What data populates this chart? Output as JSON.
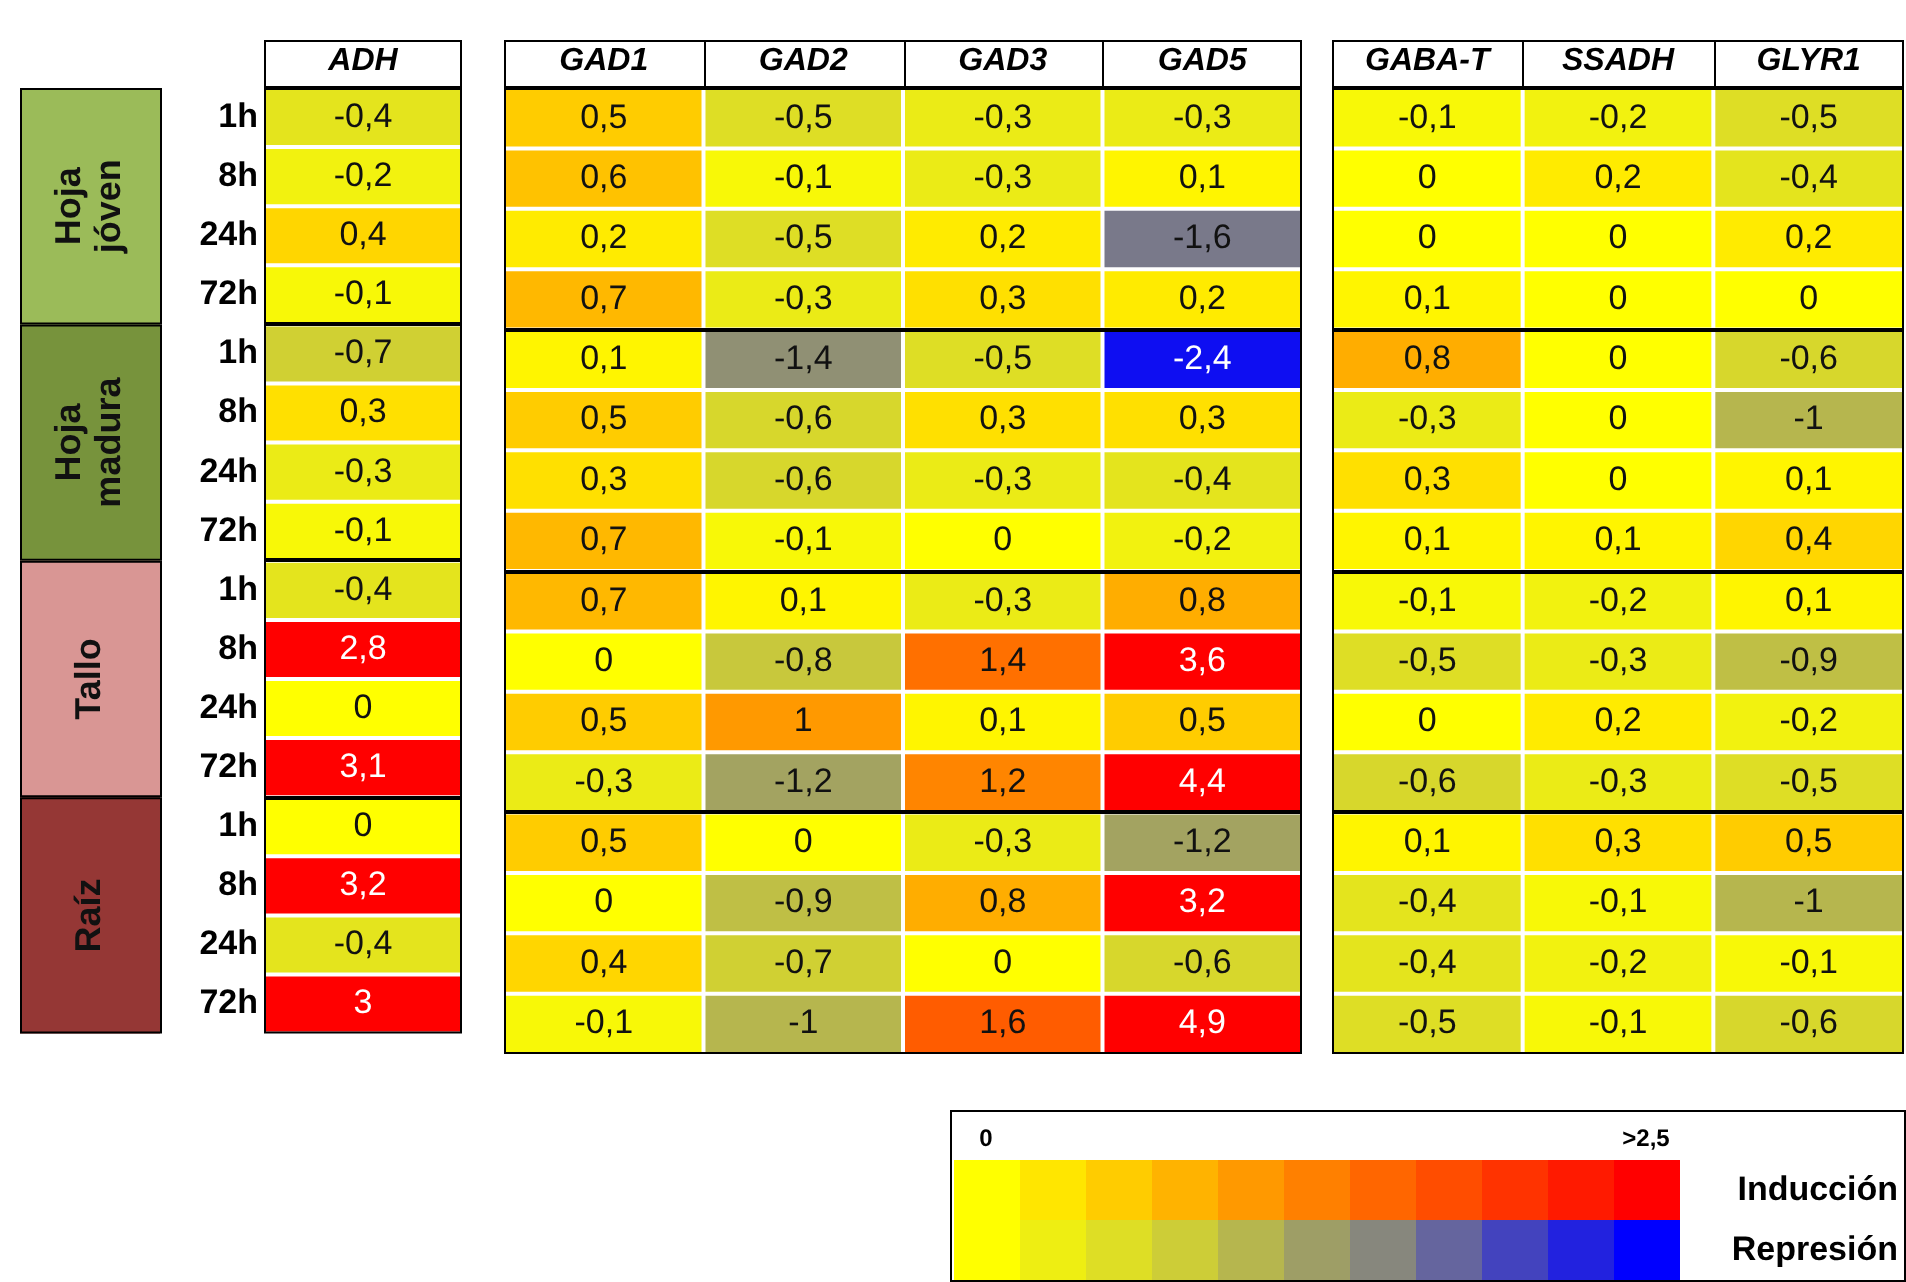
{
  "chart_data": [
    {
      "type": "heatmap",
      "categories": [
        "ADH"
      ],
      "y_categories": [
        "1h",
        "8h",
        "24h",
        "72h",
        "1h",
        "8h",
        "24h",
        "72h",
        "1h",
        "8h",
        "24h",
        "72h",
        "1h",
        "8h",
        "24h",
        "72h"
      ],
      "cells": [
        [
          -0.4
        ],
        [
          -0.2
        ],
        [
          0.4
        ],
        [
          -0.1
        ],
        [
          -0.7
        ],
        [
          0.3
        ],
        [
          -0.3
        ],
        [
          -0.1
        ],
        [
          -0.4
        ],
        [
          2.8
        ],
        [
          0
        ],
        [
          3.1
        ],
        [
          0
        ],
        [
          3.2
        ],
        [
          -0.4
        ],
        [
          3
        ]
      ],
      "cell_labels": [
        [
          "-0,4"
        ],
        [
          "-0,2"
        ],
        [
          "0,4"
        ],
        [
          "-0,1"
        ],
        [
          "-0,7"
        ],
        [
          "0,3"
        ],
        [
          "-0,3"
        ],
        [
          "-0,1"
        ],
        [
          "-0,4"
        ],
        [
          "2,8"
        ],
        [
          "0"
        ],
        [
          "3,1"
        ],
        [
          "0"
        ],
        [
          "3,2"
        ],
        [
          "-0,4"
        ],
        [
          "3"
        ]
      ],
      "annotations": [
        "Hoja jóven",
        "Hoja madura",
        "Tallo",
        "Raíz"
      ]
    },
    {
      "type": "heatmap",
      "categories": [
        "GAD1",
        "GAD2",
        "GAD3",
        "GAD5"
      ],
      "y_categories": [
        "1h",
        "8h",
        "24h",
        "72h",
        "1h",
        "8h",
        "24h",
        "72h",
        "1h",
        "8h",
        "24h",
        "72h",
        "1h",
        "8h",
        "24h",
        "72h"
      ],
      "tick_labels": "x",
      "cells": [
        [
          0.5,
          -0.5,
          -0.3,
          -0.3
        ],
        [
          0.6,
          -0.1,
          -0.3,
          0.1
        ],
        [
          0.2,
          -0.5,
          0.2,
          -1.6
        ],
        [
          0.7,
          -0.3,
          0.3,
          0.2
        ],
        [
          0.1,
          -1.4,
          -0.5,
          -2.4
        ],
        [
          0.5,
          -0.6,
          0.3,
          0.3
        ],
        [
          0.3,
          -0.6,
          -0.3,
          -0.4
        ],
        [
          0.7,
          -0.1,
          0,
          -0.2
        ],
        [
          0.7,
          0.1,
          -0.3,
          0.8
        ],
        [
          0,
          -0.8,
          1.4,
          3.6
        ],
        [
          0.5,
          1,
          0.1,
          0.5
        ],
        [
          -0.3,
          -1.2,
          1.2,
          4.4
        ],
        [
          0.5,
          0,
          -0.3,
          -1.2
        ],
        [
          0,
          -0.9,
          0.8,
          3.2
        ],
        [
          0.4,
          -0.7,
          0,
          -0.6
        ],
        [
          -0.1,
          -1,
          1.6,
          4.9
        ]
      ],
      "cell_labels": [
        [
          "0,5",
          "-0,5",
          "-0,3",
          "-0,3"
        ],
        [
          "0,6",
          "-0,1",
          "-0,3",
          "0,1"
        ],
        [
          "0,2",
          "-0,5",
          "0,2",
          "-1,6"
        ],
        [
          "0,7",
          "-0,3",
          "0,3",
          "0,2"
        ],
        [
          "0,1",
          "-1,4",
          "-0,5",
          "-2,4"
        ],
        [
          "0,5",
          "-0,6",
          "0,3",
          "0,3"
        ],
        [
          "0,3",
          "-0,6",
          "-0,3",
          "-0,4"
        ],
        [
          "0,7",
          "-0,1",
          "0",
          "-0,2"
        ],
        [
          "0,7",
          "0,1",
          "-0,3",
          "0,8"
        ],
        [
          "0",
          "-0,8",
          "1,4",
          "3,6"
        ],
        [
          "0,5",
          "1",
          "0,1",
          "0,5"
        ],
        [
          "-0,3",
          "-1,2",
          "1,2",
          "4,4"
        ],
        [
          "0,5",
          "0",
          "-0,3",
          "-1,2"
        ],
        [
          "0",
          "-0,9",
          "0,8",
          "3,2"
        ],
        [
          "0,4",
          "-0,7",
          "0",
          "-0,6"
        ],
        [
          "-0,1",
          "-1",
          "1,6",
          "4,9"
        ]
      ]
    },
    {
      "type": "heatmap",
      "categories": [
        "GABA-T",
        "SSADH",
        "GLYR1"
      ],
      "y_categories": [
        "1h",
        "8h",
        "24h",
        "72h",
        "1h",
        "8h",
        "24h",
        "72h",
        "1h",
        "8h",
        "24h",
        "72h",
        "1h",
        "8h",
        "24h",
        "72h"
      ],
      "tick_labels": "x",
      "cells": [
        [
          -0.1,
          -0.2,
          -0.5
        ],
        [
          0,
          0.2,
          -0.4
        ],
        [
          0,
          0,
          0.2
        ],
        [
          0.1,
          0,
          0
        ],
        [
          0.8,
          0,
          -0.6
        ],
        [
          -0.3,
          0,
          -1
        ],
        [
          0.3,
          0,
          0.1
        ],
        [
          0.1,
          0.1,
          0.4
        ],
        [
          -0.1,
          -0.2,
          0.1
        ],
        [
          -0.5,
          -0.3,
          -0.9
        ],
        [
          0,
          0.2,
          -0.2
        ],
        [
          -0.6,
          -0.3,
          -0.5
        ],
        [
          0.1,
          0.3,
          0.5
        ],
        [
          -0.4,
          -0.1,
          -1
        ],
        [
          -0.4,
          -0.2,
          -0.1
        ],
        [
          -0.5,
          -0.1,
          -0.6
        ]
      ],
      "cell_labels": [
        [
          "-0,1",
          "-0,2",
          "-0,5"
        ],
        [
          "0",
          "0,2",
          "-0,4"
        ],
        [
          "0",
          "0",
          "0,2"
        ],
        [
          "0,1",
          "0",
          "0"
        ],
        [
          "0,8",
          "0",
          "-0,6"
        ],
        [
          "-0,3",
          "0",
          "-1"
        ],
        [
          "0,3",
          "0",
          "0,1"
        ],
        [
          "0,1",
          "0,1",
          "0,4"
        ],
        [
          "-0,1",
          "-0,2",
          "0,1"
        ],
        [
          "-0,5",
          "-0,3",
          "-0,9"
        ],
        [
          "0",
          "0,2",
          "-0,2"
        ],
        [
          "-0,6",
          "-0,3",
          "-0,5"
        ],
        [
          "0,1",
          "0,3",
          "0,5"
        ],
        [
          "-0,4",
          "-0,1",
          "-1"
        ],
        [
          "-0,4",
          "-0,2",
          "-0,1"
        ],
        [
          "-0,5",
          "-0,1",
          "-0,6"
        ]
      ],
      "annotations": [
        "0",
        ">2,5",
        "Inducción",
        "Represión"
      ]
    }
  ]
}
